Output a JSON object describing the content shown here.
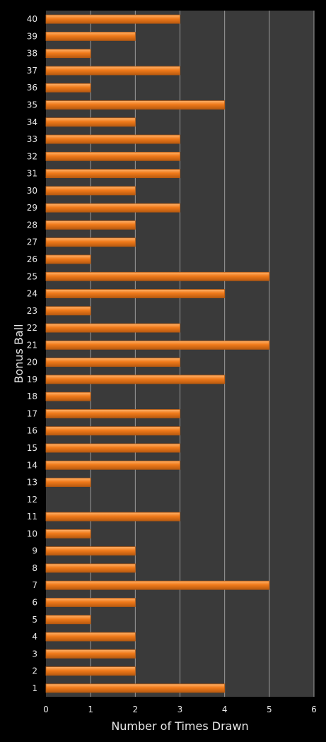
{
  "colors": {
    "background": "#000000",
    "plot_area": "#3a3a3a",
    "gridline": "#9a9a9a",
    "bar_fill": "#f07a1a",
    "bar_highlight": "#ffb26a",
    "bar_edge": "#b85a10",
    "text": "#e8e8e8"
  },
  "chart_data": {
    "type": "bar",
    "orientation": "horizontal",
    "xlabel": "Number of Times Drawn",
    "ylabel": "Bonus Ball",
    "xlim": [
      0,
      6
    ],
    "xticks": [
      "0",
      "1",
      "2",
      "3",
      "4",
      "5",
      "6"
    ],
    "grid": "vertical",
    "categories": [
      "1",
      "2",
      "3",
      "4",
      "5",
      "6",
      "7",
      "8",
      "9",
      "10",
      "11",
      "12",
      "13",
      "14",
      "15",
      "16",
      "17",
      "18",
      "19",
      "20",
      "21",
      "22",
      "23",
      "24",
      "25",
      "26",
      "27",
      "28",
      "29",
      "30",
      "31",
      "32",
      "33",
      "34",
      "35",
      "36",
      "37",
      "38",
      "39",
      "40"
    ],
    "values": [
      4,
      2,
      2,
      2,
      1,
      2,
      5,
      2,
      2,
      1,
      3,
      0,
      1,
      3,
      3,
      3,
      3,
      1,
      4,
      3,
      5,
      3,
      1,
      4,
      5,
      1,
      2,
      2,
      3,
      2,
      3,
      3,
      3,
      2,
      4,
      1,
      3,
      1,
      2,
      3
    ]
  }
}
